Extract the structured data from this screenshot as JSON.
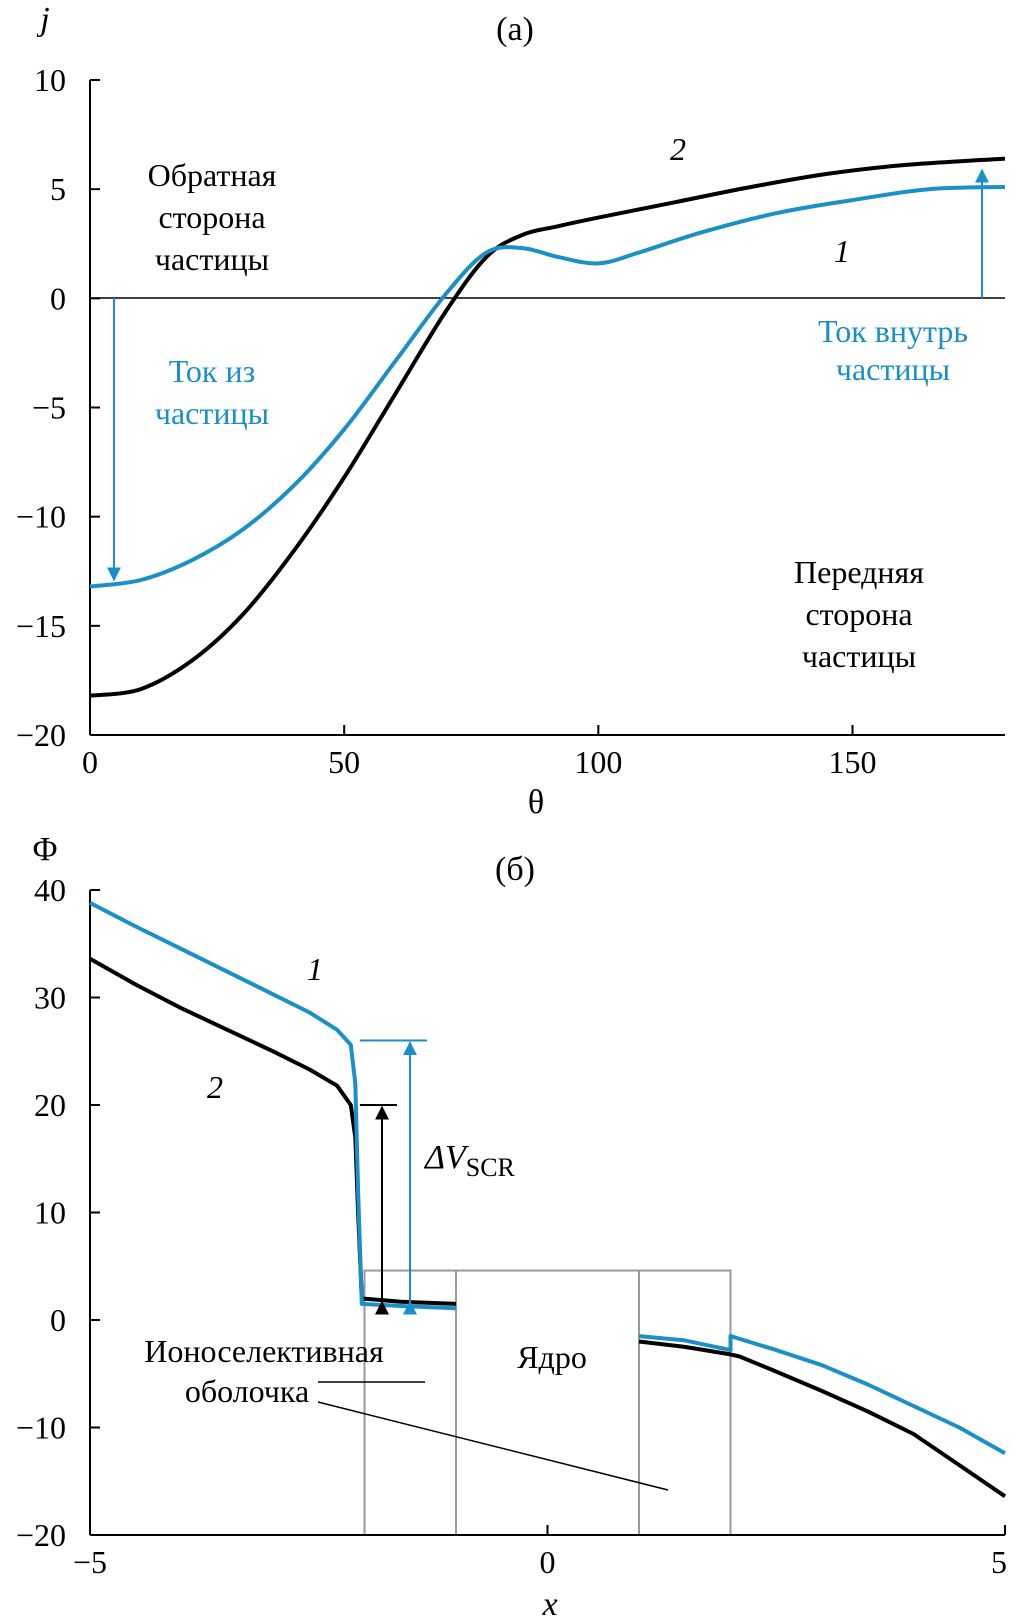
{
  "colors": {
    "series_1": "#1a8fc8",
    "series_2": "#000000",
    "box": "#999999",
    "axis": "#000000"
  },
  "chart_data": [
    {
      "type": "line",
      "panel_label": "(a)",
      "xlabel": "θ",
      "ylabel": "j",
      "xlim": [
        0,
        180
      ],
      "ylim": [
        -20,
        10
      ],
      "xticks": [
        "0",
        "50",
        "100",
        "150"
      ],
      "yticks": [
        "10",
        "5",
        "0",
        "−5",
        "−10",
        "−15",
        "−20"
      ],
      "series": [
        {
          "name": "1",
          "color": "#1a8fc8",
          "points": [
            [
              0,
              -13.2
            ],
            [
              10,
              -12.9
            ],
            [
              20,
              -12.0
            ],
            [
              30,
              -10.6
            ],
            [
              40,
              -8.6
            ],
            [
              50,
              -6.0
            ],
            [
              60,
              -2.9
            ],
            [
              70,
              0.2
            ],
            [
              78,
              2.1
            ],
            [
              85,
              2.3
            ],
            [
              92,
              1.9
            ],
            [
              100,
              1.6
            ],
            [
              108,
              2.1
            ],
            [
              120,
              3.0
            ],
            [
              135,
              3.9
            ],
            [
              150,
              4.5
            ],
            [
              165,
              5.0
            ],
            [
              180,
              5.1
            ]
          ]
        },
        {
          "name": "2",
          "color": "#000000",
          "points": [
            [
              0,
              -18.2
            ],
            [
              10,
              -17.9
            ],
            [
              20,
              -16.6
            ],
            [
              30,
              -14.5
            ],
            [
              40,
              -11.6
            ],
            [
              50,
              -8.2
            ],
            [
              60,
              -4.4
            ],
            [
              70,
              -0.6
            ],
            [
              78,
              1.9
            ],
            [
              85,
              2.9
            ],
            [
              92,
              3.3
            ],
            [
              100,
              3.7
            ],
            [
              115,
              4.4
            ],
            [
              130,
              5.1
            ],
            [
              145,
              5.7
            ],
            [
              160,
              6.1
            ],
            [
              180,
              6.4
            ]
          ]
        }
      ],
      "annotations": {
        "curve1_label": "1",
        "curve2_label": "2",
        "back_side": [
          "Обратная",
          "сторона",
          "частицы"
        ],
        "front_side": [
          "Передняя",
          "сторона",
          "частицы"
        ],
        "current_out": [
          "Ток из",
          "частицы"
        ],
        "current_in": [
          "Ток внутрь",
          "частицы"
        ]
      }
    },
    {
      "type": "line",
      "panel_label": "(б)",
      "xlabel": "x",
      "ylabel": "Φ",
      "xlim": [
        -5,
        5
      ],
      "ylim": [
        -20,
        40
      ],
      "xticks": [
        "−5",
        "0",
        "5"
      ],
      "yticks": [
        "40",
        "30",
        "20",
        "10",
        "0",
        "−10",
        "−20"
      ],
      "series": [
        {
          "name": "1",
          "color": "#1a8fc8",
          "segments": [
            [
              [
                -5,
                38.8
              ],
              [
                -4.5,
                36.6
              ],
              [
                -4,
                34.5
              ],
              [
                -3.5,
                32.4
              ],
              [
                -3,
                30.3
              ],
              [
                -2.6,
                28.6
              ],
              [
                -2.3,
                27.0
              ],
              [
                -2.15,
                25.6
              ],
              [
                -2.1,
                22
              ],
              [
                -2.07,
                12
              ],
              [
                -2.03,
                1.5
              ],
              [
                -1.6,
                1.3
              ],
              [
                -1.0,
                1.1
              ]
            ],
            [
              [
                1.0,
                -1.5
              ],
              [
                1.5,
                -1.9
              ],
              [
                2.0,
                -2.8
              ],
              [
                2.0,
                -1.5
              ],
              [
                2.5,
                -2.8
              ],
              [
                3.0,
                -4.2
              ],
              [
                3.5,
                -6.0
              ],
              [
                4.0,
                -8.0
              ],
              [
                4.5,
                -10.0
              ],
              [
                5.0,
                -12.4
              ]
            ]
          ]
        },
        {
          "name": "2",
          "color": "#000000",
          "segments": [
            [
              [
                -5,
                33.6
              ],
              [
                -4.5,
                31.2
              ],
              [
                -4,
                29.0
              ],
              [
                -3.5,
                27.0
              ],
              [
                -3,
                25.0
              ],
              [
                -2.6,
                23.3
              ],
              [
                -2.3,
                21.8
              ],
              [
                -2.15,
                20.0
              ],
              [
                -2.1,
                17
              ],
              [
                -2.07,
                10
              ],
              [
                -2.03,
                2.0
              ],
              [
                -1.6,
                1.7
              ],
              [
                -1.0,
                1.5
              ]
            ],
            [
              [
                1.0,
                -2.0
              ],
              [
                1.5,
                -2.5
              ],
              [
                2.0,
                -3.2
              ],
              [
                2.1,
                -3.4
              ],
              [
                2.5,
                -4.8
              ],
              [
                3.0,
                -6.6
              ],
              [
                3.5,
                -8.5
              ],
              [
                4.0,
                -10.6
              ],
              [
                4.5,
                -13.5
              ],
              [
                5.0,
                -16.4
              ]
            ]
          ]
        }
      ],
      "boxes": [
        {
          "name": "shell-left",
          "x0": -2.0,
          "x1": -1.0,
          "y0": -20,
          "y1": 4.6
        },
        {
          "name": "core",
          "x0": -1.0,
          "x1": 1.0,
          "y0": -20,
          "y1": 4.6
        },
        {
          "name": "shell-right",
          "x0": 1.0,
          "x1": 2.0,
          "y0": -20,
          "y1": 4.6
        }
      ],
      "delta_v": {
        "series1_level": 26.0,
        "series2_level": 20.0,
        "bottom": 1.5
      },
      "annotations": {
        "curve1_label": "1",
        "curve2_label": "2",
        "delta_v_symbol": "ΔV",
        "delta_v_subscript": "SCR",
        "core_label": "Ядро",
        "shell_label": [
          "Ионоселективная",
          "оболочка"
        ]
      }
    }
  ]
}
